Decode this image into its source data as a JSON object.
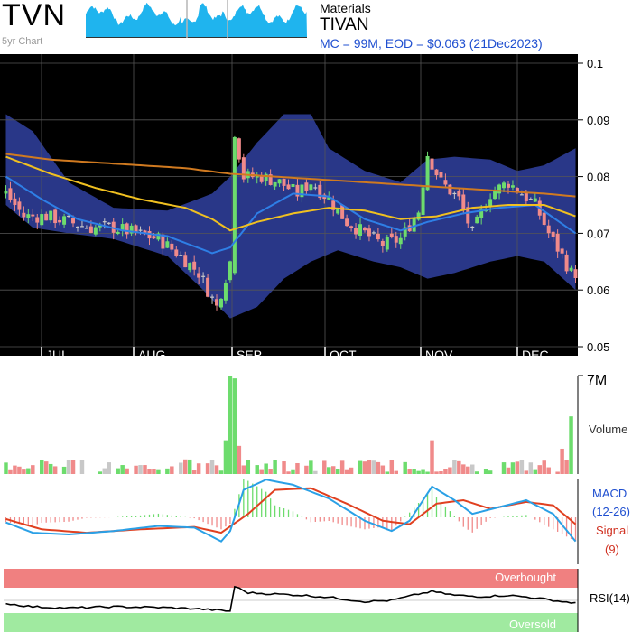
{
  "header": {
    "ticker": "TVN",
    "chart_label": "5yr Chart",
    "sector": "Materials",
    "company": "TIVAN",
    "summary": "MC = 99M, EOD = $0.063 (21Dec2023)"
  },
  "labels": {
    "volume": "Volume",
    "volume_max": "7M",
    "macd_line1": "MACD",
    "macd_line2": "(12-26)",
    "signal_line1": "Signal",
    "signal_line2": "(9)",
    "rsi": "RSI(14)",
    "overbought": "Overbought",
    "oversold": "Oversold"
  },
  "colors": {
    "price_bg": "#000000",
    "band_fill": "#2b3a8f",
    "up_candle": "#6ddc6d",
    "down_candle": "#f08a8a",
    "flat_candle": "#c8c8c8",
    "ma_short": "#2e7fe6",
    "ma_mid": "#f0c020",
    "ma_long": "#d07a20",
    "macd_line": "#2aa0e6",
    "signal_line": "#e04020",
    "overbought_zone": "#f08080",
    "oversold_zone": "#a0eaa0"
  },
  "chart_data": {
    "type": "candlestick",
    "y_ticks": [
      "0.1",
      "0.09",
      "0.08",
      "0.07",
      "0.06",
      "0.05"
    ],
    "ylim": [
      0.05,
      0.1
    ],
    "x_ticks": [
      "JUL",
      "AUG",
      "SEP",
      "OCT",
      "NOV",
      "DEC"
    ],
    "close_points": [
      {
        "t": 0,
        "v": 0.077
      },
      {
        "t": 4,
        "v": 0.073
      },
      {
        "t": 9,
        "v": 0.073
      },
      {
        "t": 14,
        "v": 0.072
      },
      {
        "t": 19,
        "v": 0.071
      },
      {
        "t": 24,
        "v": 0.071
      },
      {
        "t": 29,
        "v": 0.07
      },
      {
        "t": 34,
        "v": 0.069
      },
      {
        "t": 39,
        "v": 0.066
      },
      {
        "t": 43,
        "v": 0.063
      },
      {
        "t": 47,
        "v": 0.057
      },
      {
        "t": 50,
        "v": 0.065
      },
      {
        "t": 51,
        "v": 0.088
      },
      {
        "t": 53,
        "v": 0.08
      },
      {
        "t": 57,
        "v": 0.08
      },
      {
        "t": 61,
        "v": 0.079
      },
      {
        "t": 65,
        "v": 0.077
      },
      {
        "t": 68,
        "v": 0.079
      },
      {
        "t": 72,
        "v": 0.076
      },
      {
        "t": 76,
        "v": 0.072
      },
      {
        "t": 80,
        "v": 0.07
      },
      {
        "t": 84,
        "v": 0.068
      },
      {
        "t": 88,
        "v": 0.069
      },
      {
        "t": 92,
        "v": 0.074
      },
      {
        "t": 94,
        "v": 0.084
      },
      {
        "t": 97,
        "v": 0.079
      },
      {
        "t": 101,
        "v": 0.076
      },
      {
        "t": 104,
        "v": 0.07
      },
      {
        "t": 108,
        "v": 0.077
      },
      {
        "t": 112,
        "v": 0.079
      },
      {
        "t": 115,
        "v": 0.077
      },
      {
        "t": 118,
        "v": 0.075
      },
      {
        "t": 121,
        "v": 0.07
      },
      {
        "t": 124,
        "v": 0.066
      },
      {
        "t": 126,
        "v": 0.063
      }
    ],
    "ma_short_points": [
      {
        "t": 0,
        "v": 0.08
      },
      {
        "t": 8,
        "v": 0.076
      },
      {
        "t": 16,
        "v": 0.0725
      },
      {
        "t": 26,
        "v": 0.0705
      },
      {
        "t": 36,
        "v": 0.0695
      },
      {
        "t": 46,
        "v": 0.0665
      },
      {
        "t": 50,
        "v": 0.0675
      },
      {
        "t": 56,
        "v": 0.0735
      },
      {
        "t": 64,
        "v": 0.077
      },
      {
        "t": 72,
        "v": 0.0765
      },
      {
        "t": 80,
        "v": 0.0725
      },
      {
        "t": 88,
        "v": 0.0705
      },
      {
        "t": 94,
        "v": 0.072
      },
      {
        "t": 102,
        "v": 0.0735
      },
      {
        "t": 110,
        "v": 0.0745
      },
      {
        "t": 118,
        "v": 0.075
      },
      {
        "t": 127,
        "v": 0.07
      }
    ],
    "ma_mid_points": [
      {
        "t": 0,
        "v": 0.0835
      },
      {
        "t": 10,
        "v": 0.0805
      },
      {
        "t": 20,
        "v": 0.078
      },
      {
        "t": 30,
        "v": 0.076
      },
      {
        "t": 40,
        "v": 0.0745
      },
      {
        "t": 46,
        "v": 0.0725
      },
      {
        "t": 50,
        "v": 0.0705
      },
      {
        "t": 56,
        "v": 0.072
      },
      {
        "t": 64,
        "v": 0.0735
      },
      {
        "t": 72,
        "v": 0.0745
      },
      {
        "t": 80,
        "v": 0.074
      },
      {
        "t": 88,
        "v": 0.0725
      },
      {
        "t": 96,
        "v": 0.073
      },
      {
        "t": 104,
        "v": 0.0745
      },
      {
        "t": 112,
        "v": 0.075
      },
      {
        "t": 120,
        "v": 0.075
      },
      {
        "t": 127,
        "v": 0.073
      }
    ],
    "ma_long_points": [
      {
        "t": 0,
        "v": 0.084
      },
      {
        "t": 10,
        "v": 0.083
      },
      {
        "t": 20,
        "v": 0.0825
      },
      {
        "t": 30,
        "v": 0.082
      },
      {
        "t": 40,
        "v": 0.0815
      },
      {
        "t": 50,
        "v": 0.0805
      },
      {
        "t": 60,
        "v": 0.08
      },
      {
        "t": 70,
        "v": 0.0795
      },
      {
        "t": 80,
        "v": 0.079
      },
      {
        "t": 90,
        "v": 0.0785
      },
      {
        "t": 100,
        "v": 0.078
      },
      {
        "t": 110,
        "v": 0.0775
      },
      {
        "t": 120,
        "v": 0.077
      },
      {
        "t": 127,
        "v": 0.0765
      }
    ],
    "band_upper_points": [
      {
        "t": 0,
        "v": 0.091
      },
      {
        "t": 6,
        "v": 0.088
      },
      {
        "t": 14,
        "v": 0.079
      },
      {
        "t": 24,
        "v": 0.0745
      },
      {
        "t": 36,
        "v": 0.074
      },
      {
        "t": 46,
        "v": 0.077
      },
      {
        "t": 50,
        "v": 0.08
      },
      {
        "t": 56,
        "v": 0.086
      },
      {
        "t": 62,
        "v": 0.091
      },
      {
        "t": 68,
        "v": 0.091
      },
      {
        "t": 72,
        "v": 0.085
      },
      {
        "t": 80,
        "v": 0.081
      },
      {
        "t": 88,
        "v": 0.079
      },
      {
        "t": 94,
        "v": 0.083
      },
      {
        "t": 100,
        "v": 0.0835
      },
      {
        "t": 108,
        "v": 0.083
      },
      {
        "t": 114,
        "v": 0.081
      },
      {
        "t": 120,
        "v": 0.082
      },
      {
        "t": 127,
        "v": 0.085
      }
    ],
    "band_lower_points": [
      {
        "t": 0,
        "v": 0.075
      },
      {
        "t": 6,
        "v": 0.071
      },
      {
        "t": 14,
        "v": 0.07
      },
      {
        "t": 24,
        "v": 0.069
      },
      {
        "t": 36,
        "v": 0.066
      },
      {
        "t": 44,
        "v": 0.06
      },
      {
        "t": 50,
        "v": 0.055
      },
      {
        "t": 56,
        "v": 0.057
      },
      {
        "t": 62,
        "v": 0.062
      },
      {
        "t": 68,
        "v": 0.065
      },
      {
        "t": 74,
        "v": 0.067
      },
      {
        "t": 82,
        "v": 0.065
      },
      {
        "t": 88,
        "v": 0.064
      },
      {
        "t": 94,
        "v": 0.062
      },
      {
        "t": 100,
        "v": 0.063
      },
      {
        "t": 108,
        "v": 0.065
      },
      {
        "t": 114,
        "v": 0.066
      },
      {
        "t": 120,
        "v": 0.065
      },
      {
        "t": 127,
        "v": 0.06
      }
    ],
    "volume_spikes": [
      {
        "t": 49,
        "v": 2.4
      },
      {
        "t": 50,
        "v": 7.0
      },
      {
        "t": 51,
        "v": 6.8
      },
      {
        "t": 52,
        "v": 2.0
      },
      {
        "t": 95,
        "v": 2.4
      },
      {
        "t": 124,
        "v": 1.8
      },
      {
        "t": 126,
        "v": 4.1
      },
      {
        "t": 127,
        "v": 2.6
      }
    ],
    "macd_points": [
      {
        "t": 0,
        "v": -0.15
      },
      {
        "t": 6,
        "v": -0.45
      },
      {
        "t": 14,
        "v": -0.5
      },
      {
        "t": 24,
        "v": -0.4
      },
      {
        "t": 34,
        "v": -0.25
      },
      {
        "t": 42,
        "v": -0.3
      },
      {
        "t": 48,
        "v": -0.7
      },
      {
        "t": 50,
        "v": -0.4
      },
      {
        "t": 53,
        "v": 0.8
      },
      {
        "t": 58,
        "v": 1.1
      },
      {
        "t": 64,
        "v": 0.95
      },
      {
        "t": 72,
        "v": 0.55
      },
      {
        "t": 80,
        "v": -0.1
      },
      {
        "t": 86,
        "v": -0.4
      },
      {
        "t": 90,
        "v": -0.1
      },
      {
        "t": 95,
        "v": 0.9
      },
      {
        "t": 100,
        "v": 0.5
      },
      {
        "t": 104,
        "v": 0.1
      },
      {
        "t": 110,
        "v": 0.3
      },
      {
        "t": 116,
        "v": 0.5
      },
      {
        "t": 122,
        "v": 0.1
      },
      {
        "t": 127,
        "v": -0.7
      }
    ],
    "signal_points": [
      {
        "t": 0,
        "v": -0.05
      },
      {
        "t": 8,
        "v": -0.35
      },
      {
        "t": 18,
        "v": -0.45
      },
      {
        "t": 30,
        "v": -0.35
      },
      {
        "t": 42,
        "v": -0.28
      },
      {
        "t": 48,
        "v": -0.45
      },
      {
        "t": 54,
        "v": 0.1
      },
      {
        "t": 60,
        "v": 0.8
      },
      {
        "t": 68,
        "v": 0.85
      },
      {
        "t": 76,
        "v": 0.4
      },
      {
        "t": 84,
        "v": -0.1
      },
      {
        "t": 90,
        "v": -0.2
      },
      {
        "t": 96,
        "v": 0.4
      },
      {
        "t": 102,
        "v": 0.5
      },
      {
        "t": 108,
        "v": 0.25
      },
      {
        "t": 116,
        "v": 0.45
      },
      {
        "t": 122,
        "v": 0.35
      },
      {
        "t": 127,
        "v": -0.2
      }
    ],
    "rsi_points": [
      {
        "t": 0,
        "v": 45
      },
      {
        "t": 6,
        "v": 40
      },
      {
        "t": 14,
        "v": 38
      },
      {
        "t": 24,
        "v": 40
      },
      {
        "t": 34,
        "v": 39
      },
      {
        "t": 42,
        "v": 37
      },
      {
        "t": 48,
        "v": 34
      },
      {
        "t": 50,
        "v": 33
      },
      {
        "t": 51,
        "v": 72
      },
      {
        "t": 54,
        "v": 62
      },
      {
        "t": 60,
        "v": 60
      },
      {
        "t": 66,
        "v": 58
      },
      {
        "t": 72,
        "v": 55
      },
      {
        "t": 80,
        "v": 48
      },
      {
        "t": 86,
        "v": 50
      },
      {
        "t": 92,
        "v": 60
      },
      {
        "t": 95,
        "v": 64
      },
      {
        "t": 100,
        "v": 58
      },
      {
        "t": 106,
        "v": 56
      },
      {
        "t": 112,
        "v": 58
      },
      {
        "t": 118,
        "v": 54
      },
      {
        "t": 124,
        "v": 48
      },
      {
        "t": 127,
        "v": 46
      }
    ]
  }
}
